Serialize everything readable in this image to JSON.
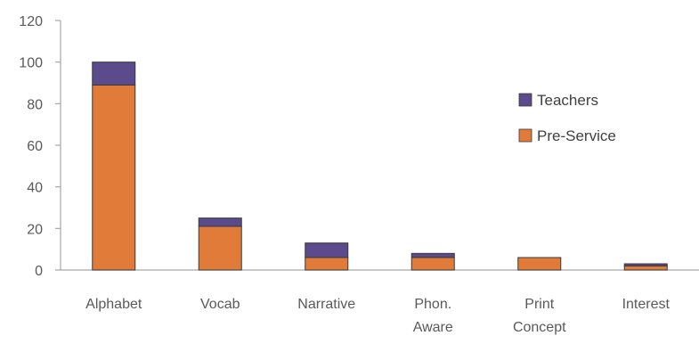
{
  "chart_data": {
    "type": "bar",
    "stacked": true,
    "categories": [
      "Alphabet",
      "Vocab",
      "Narrative",
      "Phon. Aware",
      "Print Concept",
      "Interest"
    ],
    "series": [
      {
        "name": "Pre-Service",
        "color": "#E07B39",
        "values": [
          89,
          21,
          6,
          6,
          6,
          2
        ]
      },
      {
        "name": "Teachers",
        "color": "#5B4A8C",
        "values": [
          11,
          4,
          7,
          2,
          0,
          1
        ]
      }
    ],
    "ylim": [
      0,
      120
    ],
    "yticks": [
      "0",
      "20",
      "40",
      "60",
      "80",
      "100",
      "120"
    ],
    "legend_position": "right",
    "legend_order": [
      "Teachers",
      "Pre-Service"
    ],
    "grid": false
  }
}
